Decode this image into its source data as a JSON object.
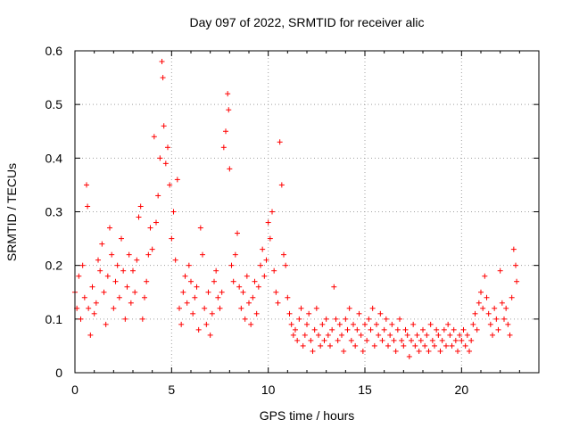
{
  "chart_data": {
    "type": "scatter",
    "title": "Day 097 of 2022, SRMTID for receiver alic",
    "xlabel": "GPS time / hours",
    "ylabel": "SRMTID / TECUs",
    "xlim": [
      0,
      24
    ],
    "ylim": [
      0,
      0.6
    ],
    "x_ticks": [
      0,
      5,
      10,
      15,
      20
    ],
    "y_ticks": [
      0,
      0.1,
      0.2,
      0.3,
      0.4,
      0.5,
      0.6
    ],
    "x_tick_labels": [
      "0",
      "5",
      "10",
      "15",
      "20"
    ],
    "y_tick_labels": [
      "0",
      "0.1",
      "0.2",
      "0.3",
      "0.4",
      "0.5",
      "0.6"
    ],
    "grid": true,
    "marker": "+",
    "color": "#ff0000",
    "series": [
      {
        "name": "SRMTID",
        "points": [
          [
            0.0,
            0.15
          ],
          [
            0.1,
            0.12
          ],
          [
            0.2,
            0.18
          ],
          [
            0.3,
            0.1
          ],
          [
            0.4,
            0.2
          ],
          [
            0.5,
            0.14
          ],
          [
            0.6,
            0.35
          ],
          [
            0.65,
            0.31
          ],
          [
            0.7,
            0.12
          ],
          [
            0.8,
            0.07
          ],
          [
            0.9,
            0.16
          ],
          [
            1.0,
            0.11
          ],
          [
            1.1,
            0.13
          ],
          [
            1.2,
            0.21
          ],
          [
            1.3,
            0.19
          ],
          [
            1.4,
            0.24
          ],
          [
            1.5,
            0.15
          ],
          [
            1.6,
            0.09
          ],
          [
            1.7,
            0.18
          ],
          [
            1.8,
            0.27
          ],
          [
            1.9,
            0.22
          ],
          [
            2.0,
            0.12
          ],
          [
            2.1,
            0.17
          ],
          [
            2.2,
            0.2
          ],
          [
            2.3,
            0.14
          ],
          [
            2.4,
            0.25
          ],
          [
            2.5,
            0.19
          ],
          [
            2.6,
            0.1
          ],
          [
            2.7,
            0.16
          ],
          [
            2.8,
            0.22
          ],
          [
            2.9,
            0.13
          ],
          [
            3.0,
            0.19
          ],
          [
            3.1,
            0.15
          ],
          [
            3.2,
            0.21
          ],
          [
            3.3,
            0.29
          ],
          [
            3.4,
            0.31
          ],
          [
            3.5,
            0.1
          ],
          [
            3.6,
            0.14
          ],
          [
            3.7,
            0.17
          ],
          [
            3.8,
            0.22
          ],
          [
            3.9,
            0.27
          ],
          [
            4.0,
            0.23
          ],
          [
            4.1,
            0.44
          ],
          [
            4.2,
            0.28
          ],
          [
            4.3,
            0.33
          ],
          [
            4.4,
            0.4
          ],
          [
            4.5,
            0.58
          ],
          [
            4.55,
            0.55
          ],
          [
            4.6,
            0.46
          ],
          [
            4.7,
            0.39
          ],
          [
            4.8,
            0.42
          ],
          [
            4.9,
            0.35
          ],
          [
            5.0,
            0.25
          ],
          [
            5.1,
            0.3
          ],
          [
            5.2,
            0.21
          ],
          [
            5.3,
            0.36
          ],
          [
            5.4,
            0.12
          ],
          [
            5.5,
            0.09
          ],
          [
            5.6,
            0.15
          ],
          [
            5.7,
            0.18
          ],
          [
            5.8,
            0.13
          ],
          [
            5.9,
            0.2
          ],
          [
            6.0,
            0.17
          ],
          [
            6.1,
            0.11
          ],
          [
            6.2,
            0.14
          ],
          [
            6.3,
            0.16
          ],
          [
            6.4,
            0.08
          ],
          [
            6.5,
            0.27
          ],
          [
            6.6,
            0.22
          ],
          [
            6.7,
            0.12
          ],
          [
            6.8,
            0.09
          ],
          [
            6.9,
            0.15
          ],
          [
            7.0,
            0.07
          ],
          [
            7.1,
            0.11
          ],
          [
            7.2,
            0.17
          ],
          [
            7.3,
            0.19
          ],
          [
            7.4,
            0.14
          ],
          [
            7.5,
            0.12
          ],
          [
            7.6,
            0.15
          ],
          [
            7.7,
            0.42
          ],
          [
            7.8,
            0.45
          ],
          [
            7.9,
            0.52
          ],
          [
            7.95,
            0.49
          ],
          [
            8.0,
            0.38
          ],
          [
            8.1,
            0.2
          ],
          [
            8.2,
            0.17
          ],
          [
            8.3,
            0.22
          ],
          [
            8.4,
            0.26
          ],
          [
            8.5,
            0.16
          ],
          [
            8.6,
            0.12
          ],
          [
            8.7,
            0.15
          ],
          [
            8.8,
            0.1
          ],
          [
            8.9,
            0.18
          ],
          [
            9.0,
            0.13
          ],
          [
            9.1,
            0.09
          ],
          [
            9.2,
            0.14
          ],
          [
            9.3,
            0.17
          ],
          [
            9.4,
            0.11
          ],
          [
            9.5,
            0.16
          ],
          [
            9.6,
            0.2
          ],
          [
            9.7,
            0.23
          ],
          [
            9.8,
            0.18
          ],
          [
            9.9,
            0.21
          ],
          [
            10.0,
            0.28
          ],
          [
            10.1,
            0.25
          ],
          [
            10.2,
            0.3
          ],
          [
            10.3,
            0.19
          ],
          [
            10.4,
            0.15
          ],
          [
            10.5,
            0.13
          ],
          [
            10.6,
            0.43
          ],
          [
            10.7,
            0.35
          ],
          [
            10.8,
            0.22
          ],
          [
            10.9,
            0.2
          ],
          [
            11.0,
            0.14
          ],
          [
            11.1,
            0.11
          ],
          [
            11.2,
            0.09
          ],
          [
            11.3,
            0.07
          ],
          [
            11.4,
            0.08
          ],
          [
            11.5,
            0.06
          ],
          [
            11.6,
            0.1
          ],
          [
            11.7,
            0.12
          ],
          [
            11.8,
            0.05
          ],
          [
            11.9,
            0.07
          ],
          [
            12.0,
            0.09
          ],
          [
            12.1,
            0.11
          ],
          [
            12.2,
            0.06
          ],
          [
            12.3,
            0.04
          ],
          [
            12.4,
            0.08
          ],
          [
            12.5,
            0.12
          ],
          [
            12.6,
            0.07
          ],
          [
            12.7,
            0.05
          ],
          [
            12.8,
            0.09
          ],
          [
            12.9,
            0.06
          ],
          [
            13.0,
            0.1
          ],
          [
            13.1,
            0.07
          ],
          [
            13.2,
            0.05
          ],
          [
            13.3,
            0.08
          ],
          [
            13.4,
            0.16
          ],
          [
            13.5,
            0.1
          ],
          [
            13.6,
            0.06
          ],
          [
            13.7,
            0.09
          ],
          [
            13.8,
            0.07
          ],
          [
            13.9,
            0.04
          ],
          [
            14.0,
            0.1
          ],
          [
            14.1,
            0.08
          ],
          [
            14.2,
            0.12
          ],
          [
            14.3,
            0.06
          ],
          [
            14.4,
            0.09
          ],
          [
            14.5,
            0.05
          ],
          [
            14.6,
            0.08
          ],
          [
            14.7,
            0.11
          ],
          [
            14.8,
            0.07
          ],
          [
            14.9,
            0.04
          ],
          [
            15.0,
            0.09
          ],
          [
            15.1,
            0.06
          ],
          [
            15.2,
            0.1
          ],
          [
            15.3,
            0.08
          ],
          [
            15.4,
            0.12
          ],
          [
            15.5,
            0.05
          ],
          [
            15.6,
            0.09
          ],
          [
            15.7,
            0.07
          ],
          [
            15.8,
            0.11
          ],
          [
            15.9,
            0.06
          ],
          [
            16.0,
            0.08
          ],
          [
            16.1,
            0.1
          ],
          [
            16.2,
            0.05
          ],
          [
            16.3,
            0.07
          ],
          [
            16.4,
            0.09
          ],
          [
            16.5,
            0.06
          ],
          [
            16.6,
            0.04
          ],
          [
            16.7,
            0.08
          ],
          [
            16.8,
            0.1
          ],
          [
            16.9,
            0.06
          ],
          [
            17.0,
            0.05
          ],
          [
            17.1,
            0.08
          ],
          [
            17.2,
            0.07
          ],
          [
            17.3,
            0.03
          ],
          [
            17.4,
            0.06
          ],
          [
            17.5,
            0.09
          ],
          [
            17.6,
            0.05
          ],
          [
            17.7,
            0.07
          ],
          [
            17.8,
            0.04
          ],
          [
            17.9,
            0.06
          ],
          [
            18.0,
            0.08
          ],
          [
            18.1,
            0.05
          ],
          [
            18.2,
            0.07
          ],
          [
            18.3,
            0.04
          ],
          [
            18.4,
            0.09
          ],
          [
            18.5,
            0.06
          ],
          [
            18.6,
            0.05
          ],
          [
            18.7,
            0.08
          ],
          [
            18.8,
            0.07
          ],
          [
            18.9,
            0.04
          ],
          [
            19.0,
            0.06
          ],
          [
            19.1,
            0.08
          ],
          [
            19.2,
            0.05
          ],
          [
            19.3,
            0.09
          ],
          [
            19.4,
            0.07
          ],
          [
            19.5,
            0.05
          ],
          [
            19.6,
            0.08
          ],
          [
            19.7,
            0.06
          ],
          [
            19.8,
            0.04
          ],
          [
            19.9,
            0.07
          ],
          [
            20.0,
            0.06
          ],
          [
            20.1,
            0.08
          ],
          [
            20.2,
            0.05
          ],
          [
            20.3,
            0.07
          ],
          [
            20.4,
            0.04
          ],
          [
            20.5,
            0.06
          ],
          [
            20.6,
            0.09
          ],
          [
            20.7,
            0.11
          ],
          [
            20.8,
            0.08
          ],
          [
            20.9,
            0.13
          ],
          [
            21.0,
            0.15
          ],
          [
            21.1,
            0.12
          ],
          [
            21.2,
            0.18
          ],
          [
            21.3,
            0.14
          ],
          [
            21.4,
            0.11
          ],
          [
            21.5,
            0.09
          ],
          [
            21.6,
            0.07
          ],
          [
            21.7,
            0.12
          ],
          [
            21.8,
            0.1
          ],
          [
            21.9,
            0.08
          ],
          [
            22.0,
            0.19
          ],
          [
            22.1,
            0.13
          ],
          [
            22.2,
            0.1
          ],
          [
            22.3,
            0.12
          ],
          [
            22.4,
            0.09
          ],
          [
            22.5,
            0.07
          ],
          [
            22.6,
            0.14
          ],
          [
            22.7,
            0.23
          ],
          [
            22.8,
            0.2
          ],
          [
            22.85,
            0.17
          ]
        ]
      }
    ]
  }
}
